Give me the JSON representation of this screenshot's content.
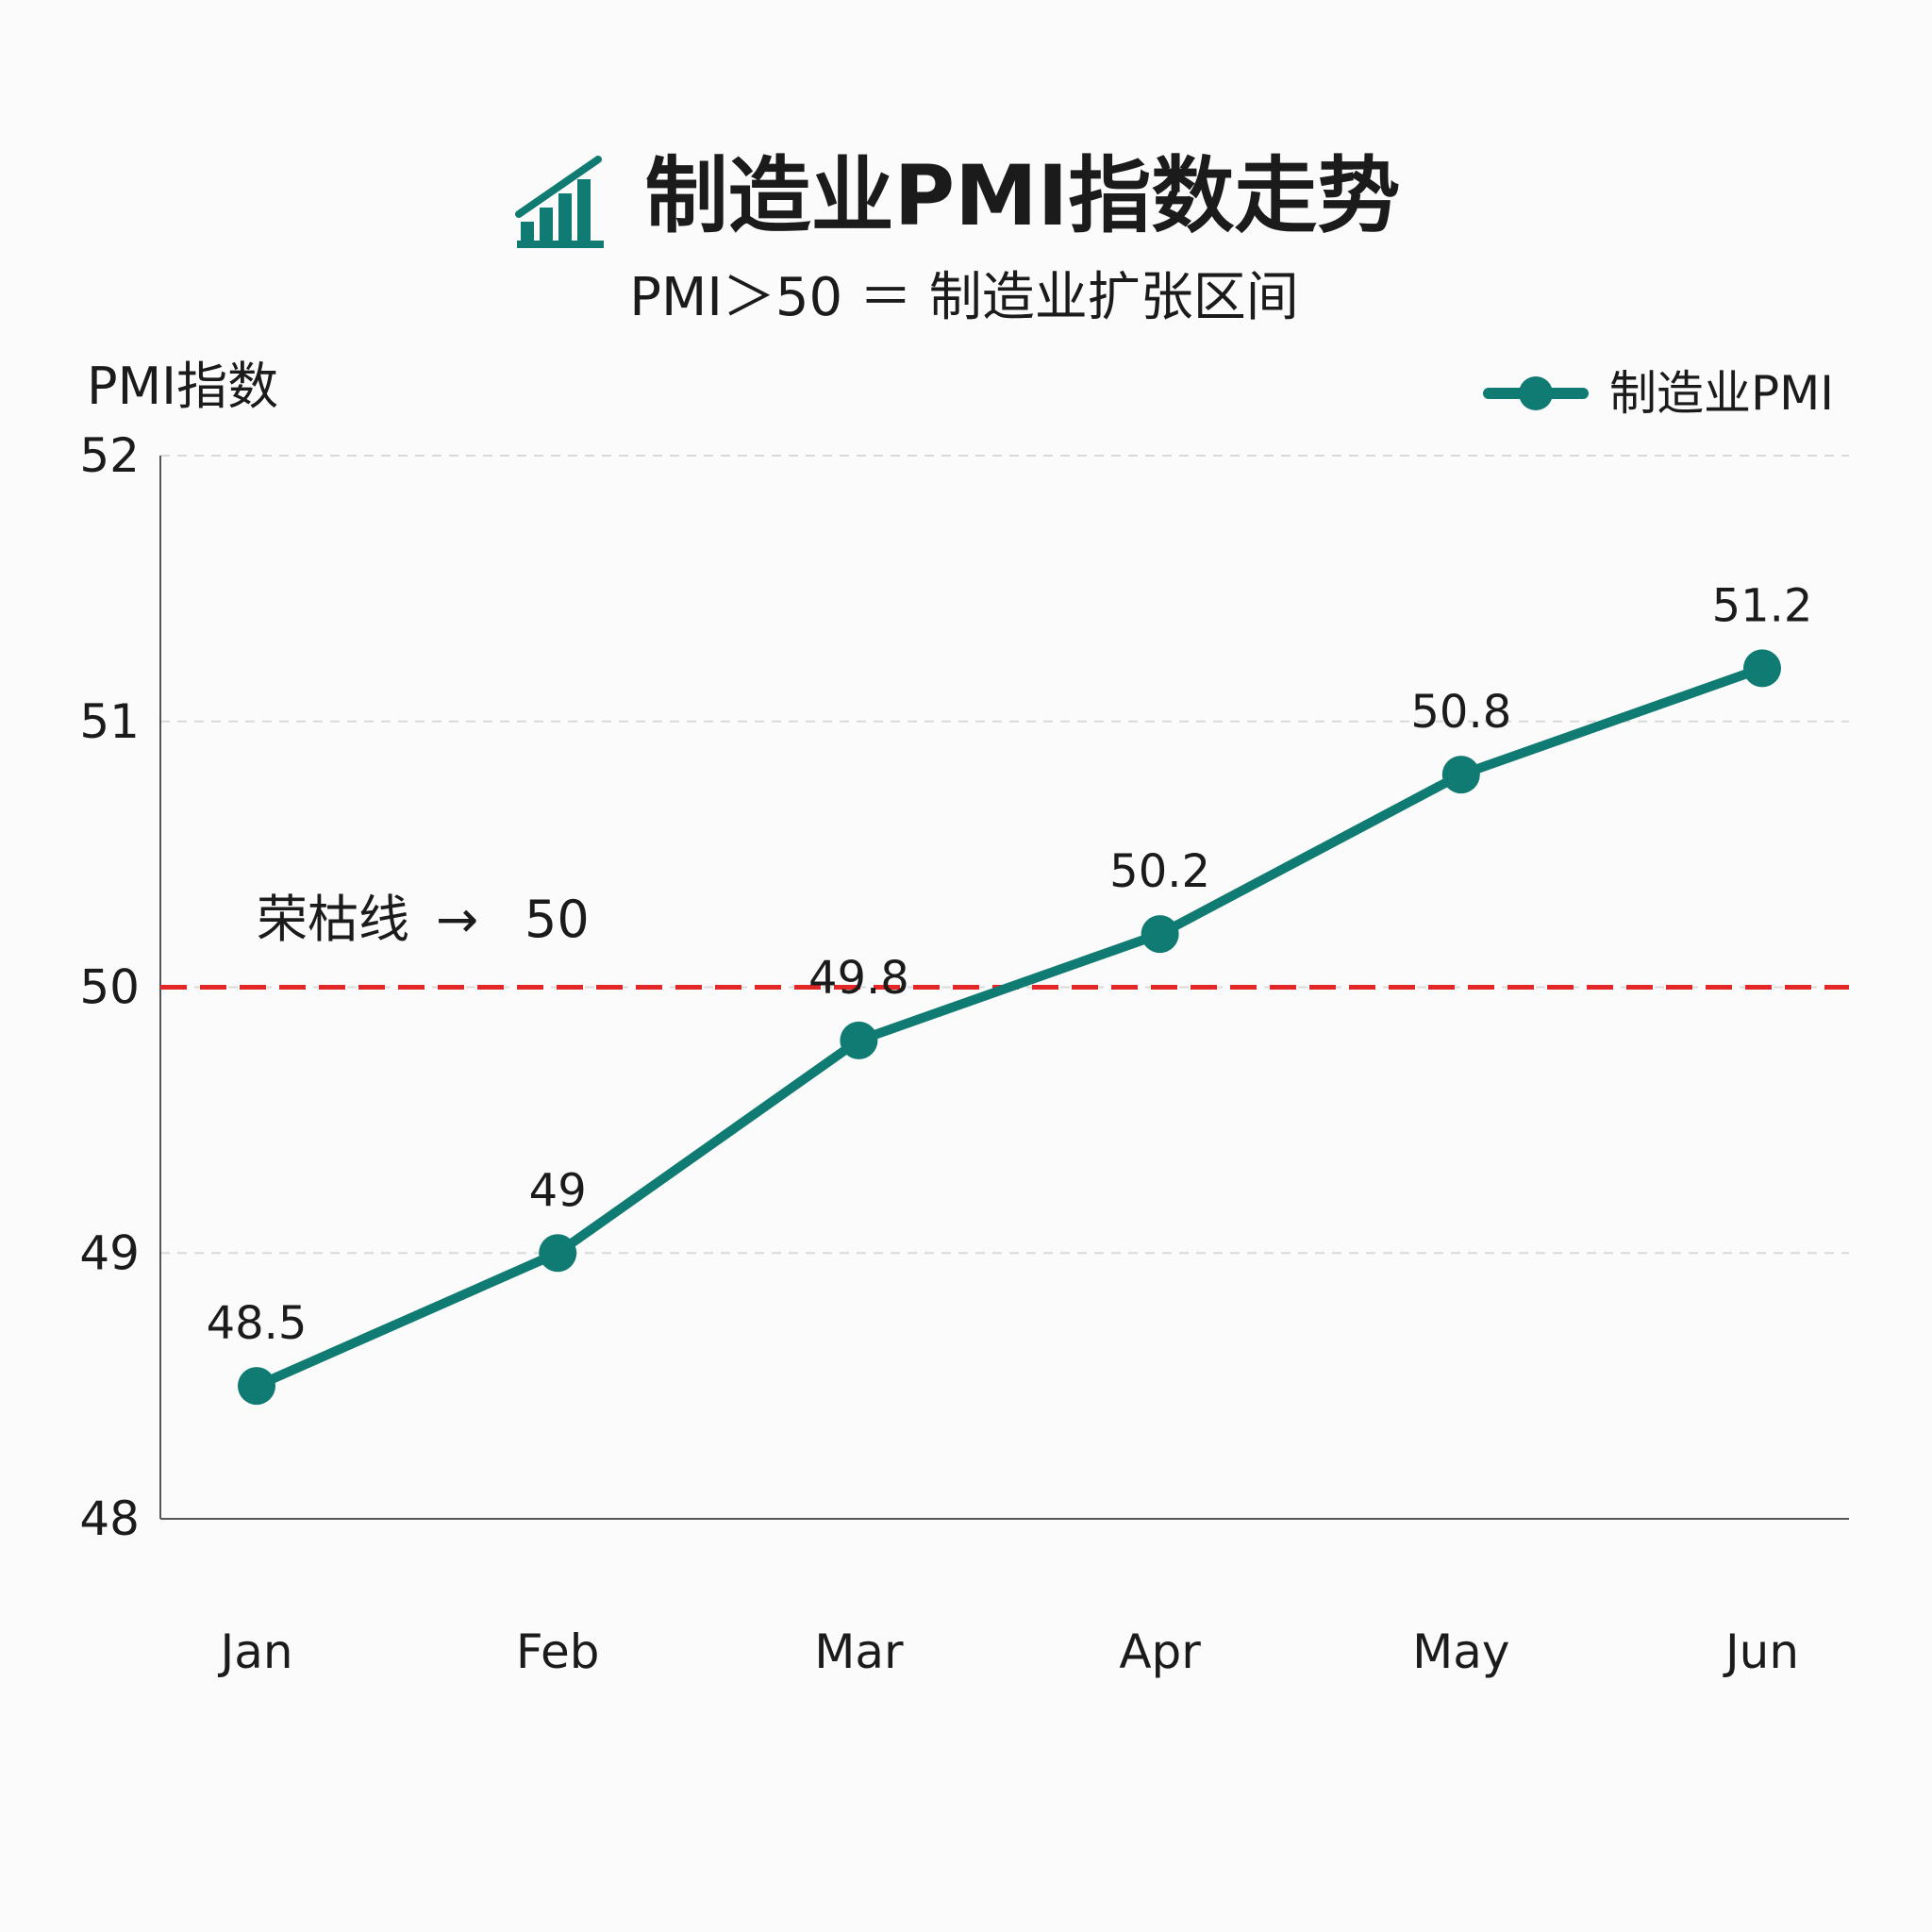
{
  "title": "制造业PMI指数走势",
  "subtitle": "PMI＞50 ＝ 制造业扩张区间",
  "colors": {
    "series": "#0f7b72",
    "reference": "#e32626",
    "grid": "#d9d9d9",
    "axis": "#555555",
    "icon": "#0f7b72"
  },
  "chart_data": {
    "type": "line",
    "title": "制造业PMI指数走势",
    "subtitle": "PMI＞50 ＝ 制造业扩张区间",
    "ylabel": "PMI指数",
    "xlabel": "",
    "categories": [
      "Jan",
      "Feb",
      "Mar",
      "Apr",
      "May",
      "Jun"
    ],
    "series": [
      {
        "name": "制造业PMI",
        "values": [
          48.5,
          49,
          49.8,
          50.2,
          50.8,
          51.2
        ],
        "labels": [
          "48.5",
          "49",
          "49.8",
          "50.2",
          "50.8",
          "51.2"
        ]
      }
    ],
    "ylim": [
      48,
      52
    ],
    "yticks": [
      "48",
      "49",
      "50",
      "51",
      "52"
    ],
    "grid": true,
    "legend_position": "top-right",
    "reference_line": {
      "value": 50,
      "label_text": "荣枯线",
      "arrow": "→",
      "label_value": "50",
      "style": "dashed"
    }
  }
}
